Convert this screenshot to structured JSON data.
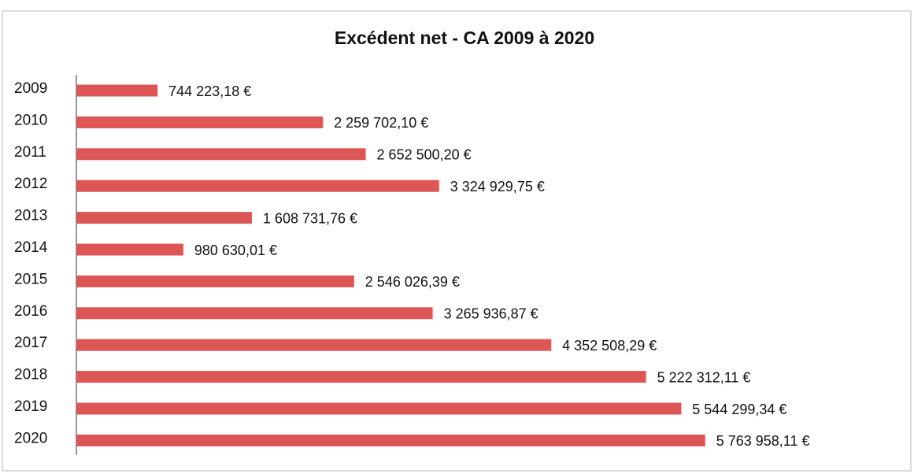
{
  "chart_data": {
    "type": "barh",
    "title": "Excédent net - CA 2009 à 2020",
    "categories": [
      "2009",
      "2010",
      "2011",
      "2012",
      "2013",
      "2014",
      "2015",
      "2016",
      "2017",
      "2018",
      "2019",
      "2020"
    ],
    "values": [
      744223.18,
      2259702.1,
      2652500.2,
      3324929.75,
      1608731.76,
      980630.01,
      2546026.39,
      3265936.87,
      4352508.29,
      5222312.11,
      5544299.34,
      5763958.11
    ],
    "value_labels": [
      "744 223,18 €",
      "2 259 702,10 €",
      "2 652 500,20 €",
      "3 324 929,75 €",
      "1 608 731,76 €",
      "980 630,01 €",
      "2 546 026,39 €",
      "3 265 936,87 €",
      "4 352 508,29 €",
      "5 222 312,11 €",
      "5 544 299,34 €",
      "5 763 958,11 €"
    ],
    "color": "#dc5656",
    "xlim": [
      0,
      7000000
    ]
  }
}
